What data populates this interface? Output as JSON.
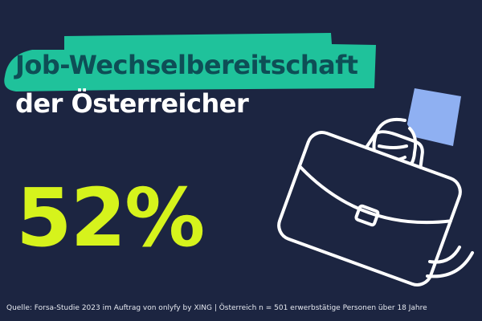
{
  "headline": {
    "highlighted": "Job-Wechselbereitschaft",
    "line2": "der Österreicher"
  },
  "stat": {
    "value": "52%"
  },
  "source": "Quelle: Forsa-Studie 2023 im Auftrag von onlyfy by XING | Österreich n = 501 erwerbstätige Personen über 18 Jahre",
  "illustration": {
    "icon": "briefcase-in-hand-icon"
  },
  "colors": {
    "background": "#1c2541",
    "highlight": "#1fc29b",
    "title_text": "#0e4e56",
    "stat": "#d6f31c",
    "sleeve": "#8fb0f2"
  }
}
